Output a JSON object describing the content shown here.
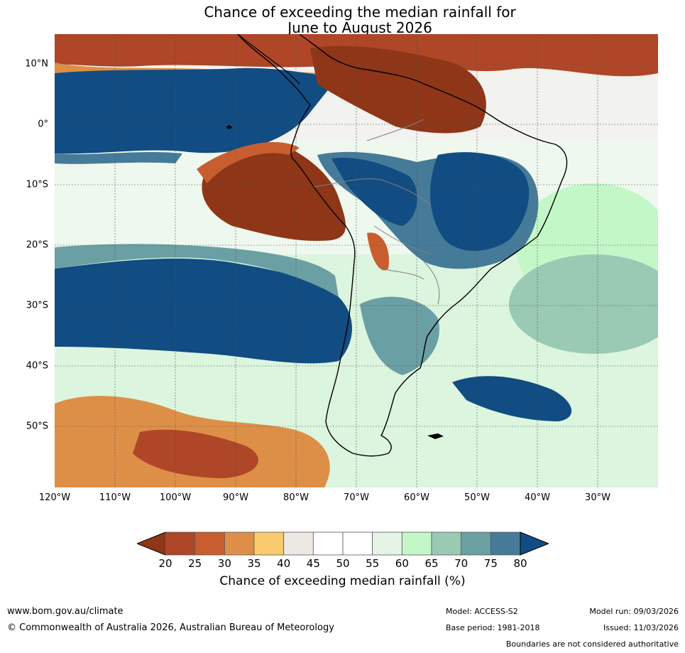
{
  "title": {
    "line1": "Chance of exceeding the median rainfall for",
    "line2": "June to August 2026"
  },
  "axes": {
    "lat_ticks": [
      "10°N",
      "0°",
      "10°S",
      "20°S",
      "30°S",
      "40°S",
      "50°S"
    ],
    "lon_ticks": [
      "120°W",
      "110°W",
      "100°W",
      "90°W",
      "80°W",
      "70°W",
      "60°W",
      "50°W",
      "40°W",
      "30°W"
    ]
  },
  "colorbar": {
    "labels": [
      "20",
      "25",
      "30",
      "35",
      "40",
      "45",
      "50",
      "55",
      "60",
      "65",
      "70",
      "75",
      "80"
    ],
    "colors": [
      "#8e3617",
      "#ae4627",
      "#c85e2f",
      "#dd8f47",
      "#f9cb6c",
      "#ece9e5",
      "#ffffff",
      "#ffffff",
      "#e6f4e7",
      "#c4f7c8",
      "#9acab3",
      "#6a9fa4",
      "#457b99",
      "#114c82"
    ],
    "title": "Chance of exceeding median rainfall (%)"
  },
  "footer": {
    "website": "www.bom.gov.au/climate",
    "copyright": "© Commonwealth of Australia 2026, Australian Bureau of Meteorology",
    "model": "Model: ACCESS-S2",
    "base_period": "Base period: 1981-2018",
    "model_run": "Model run: 09/03/2026",
    "issued": "Issued: 11/03/2026",
    "disclaimer": "Boundaries are not considered authoritative"
  }
}
